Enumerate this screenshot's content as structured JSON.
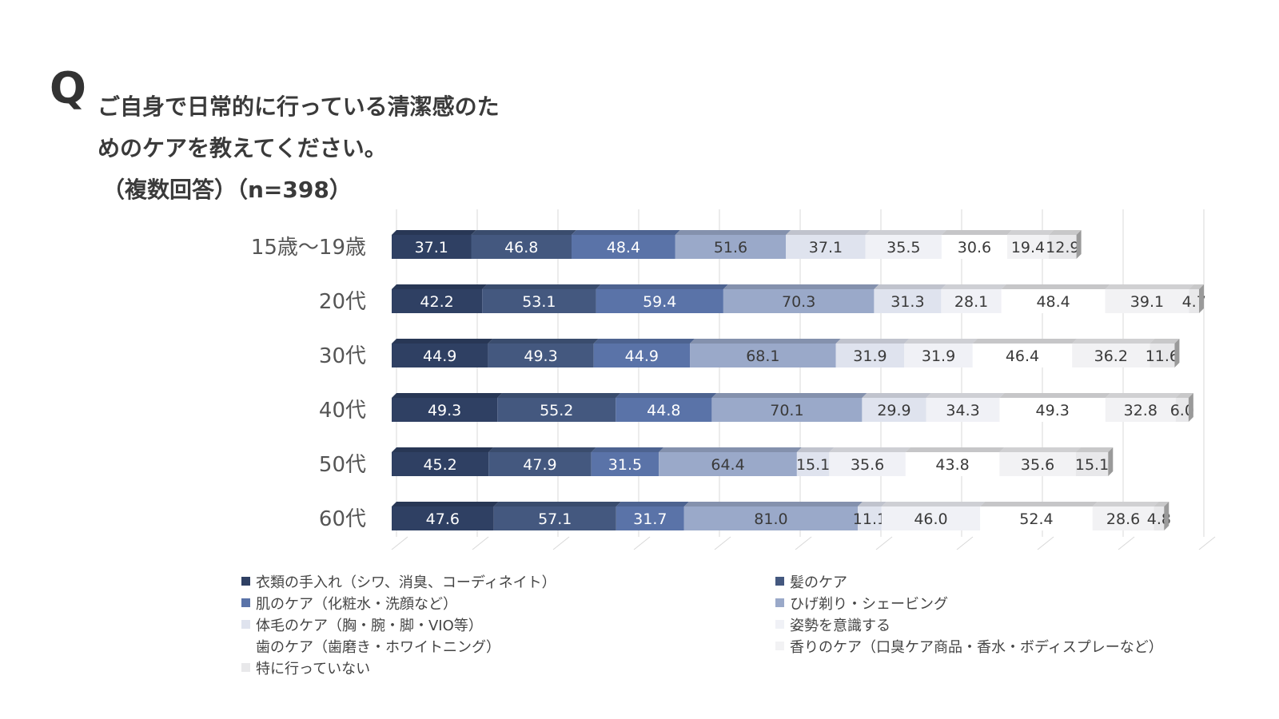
{
  "header": {
    "q_mark": "Q",
    "question_line1": "ご自身で日常的に行っている清潔感のた",
    "question_line2": "めのケアを教えてください。",
    "question_line3": "（複数回答）（n=398）"
  },
  "chart_data": {
    "type": "bar",
    "orientation": "horizontal",
    "stacked": true,
    "categories": [
      "15歳～19歳",
      "20代",
      "30代",
      "40代",
      "50代",
      "60代"
    ],
    "series": [
      {
        "name": "衣類の手入れ（シワ、消臭、コーディネイト）",
        "color": "#2f4063",
        "values": [
          37.1,
          42.2,
          44.9,
          49.3,
          45.2,
          47.6
        ]
      },
      {
        "name": "髪のケア",
        "color": "#44587f",
        "values": [
          46.8,
          53.1,
          49.3,
          55.2,
          47.9,
          57.1
        ]
      },
      {
        "name": "肌のケア（化粧水・洗顔など）",
        "color": "#5a73a8",
        "values": [
          48.4,
          59.4,
          44.9,
          44.8,
          31.5,
          31.7
        ]
      },
      {
        "name": "ひげ剃り・シェービング",
        "color": "#9aa9c9",
        "values": [
          51.6,
          70.3,
          68.1,
          70.1,
          64.4,
          81.0
        ]
      },
      {
        "name": "体毛のケア（胸・腕・脚・VIO等）",
        "color": "#dfe3ee",
        "values": [
          37.1,
          31.3,
          31.9,
          29.9,
          15.1,
          11.1
        ]
      },
      {
        "name": "姿勢を意識する",
        "color": "#f0f1f6",
        "values": [
          35.5,
          28.1,
          31.9,
          34.3,
          35.6,
          46.0
        ]
      },
      {
        "name": "歯のケア（歯磨き・ホワイトニング）",
        "color": "#ffffff",
        "values": [
          30.6,
          48.4,
          46.4,
          49.3,
          43.8,
          52.4
        ]
      },
      {
        "name": "香りのケア（口臭ケア商品・香水・ボディスプレーなど）",
        "color": "#f2f2f4",
        "values": [
          19.4,
          39.1,
          36.2,
          32.8,
          35.6,
          28.6
        ]
      },
      {
        "name": "特に行っていない",
        "color": "#e8e8ea",
        "values": [
          12.9,
          4.7,
          11.6,
          6.0,
          15.1,
          4.8
        ]
      }
    ],
    "value_format": "0.0"
  }
}
